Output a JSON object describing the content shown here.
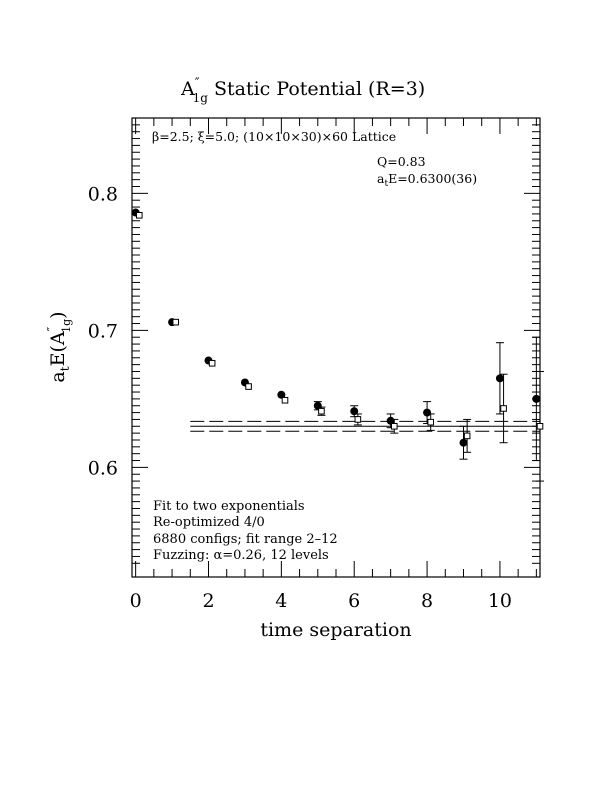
{
  "chart_data": {
    "type": "scatter",
    "title": {
      "base": "A",
      "prime": "″",
      "sub": "1g",
      "rest": " Static Potential (R=3)"
    },
    "xlabel": "time separation",
    "ylabel": {
      "base": "a",
      "sub1": "t",
      "mid": "E(A",
      "prime": "″",
      "sub2": "1g",
      "end": ")"
    },
    "xlim": [
      -0.1,
      11.1
    ],
    "ylim": [
      0.52,
      0.855
    ],
    "x_major_ticks": [
      0,
      2,
      4,
      6,
      8,
      10
    ],
    "x_tick_labels": [
      "0",
      "2",
      "4",
      "6",
      "8",
      "10"
    ],
    "y_major_ticks": [
      0.6,
      0.7,
      0.8
    ],
    "y_tick_labels": [
      "0.6",
      "0.7",
      "0.8"
    ],
    "grid": false,
    "lattice_text": {
      "beta": "β=2.5; ξ=5.0; (10×10×30)×60 Lattice"
    },
    "fit_info": {
      "q": "Q=0.83",
      "e_pre": "a",
      "e_sub": "t",
      "e_post": "E=0.6300(36)"
    },
    "notes": [
      "Fit to two exponentials",
      "Re-optimized 4/0",
      "6880 configs; fit range 2–12",
      "Fuzzing: α=0.26, 12 levels"
    ],
    "series": [
      {
        "marker": "filled-circle",
        "x": [
          0,
          1,
          2,
          3,
          4,
          5,
          6,
          7,
          8,
          9,
          10,
          11
        ],
        "y": [
          0.786,
          0.706,
          0.678,
          0.662,
          0.653,
          0.645,
          0.641,
          0.634,
          0.64,
          0.618,
          0.665,
          0.65
        ],
        "yerr": [
          0.0008,
          0.0012,
          0.0015,
          0.0018,
          0.0022,
          0.003,
          0.004,
          0.005,
          0.008,
          0.012,
          0.026,
          0.045
        ]
      },
      {
        "marker": "open-square",
        "x": [
          0.1,
          1.1,
          2.1,
          3.1,
          4.1,
          5.1,
          6.1,
          7.1,
          8.1,
          9.1,
          10.1,
          11.1
        ],
        "y": [
          0.784,
          0.706,
          0.676,
          0.659,
          0.649,
          0.641,
          0.635,
          0.63,
          0.633,
          0.623,
          0.643,
          0.63
        ],
        "yerr": [
          0.0008,
          0.0012,
          0.0015,
          0.0018,
          0.0022,
          0.003,
          0.004,
          0.005,
          0.006,
          0.012,
          0.025,
          0.04
        ]
      }
    ],
    "fit": {
      "value": 0.63,
      "error": 0.0036,
      "x_range": [
        1.5,
        11.1
      ]
    }
  }
}
